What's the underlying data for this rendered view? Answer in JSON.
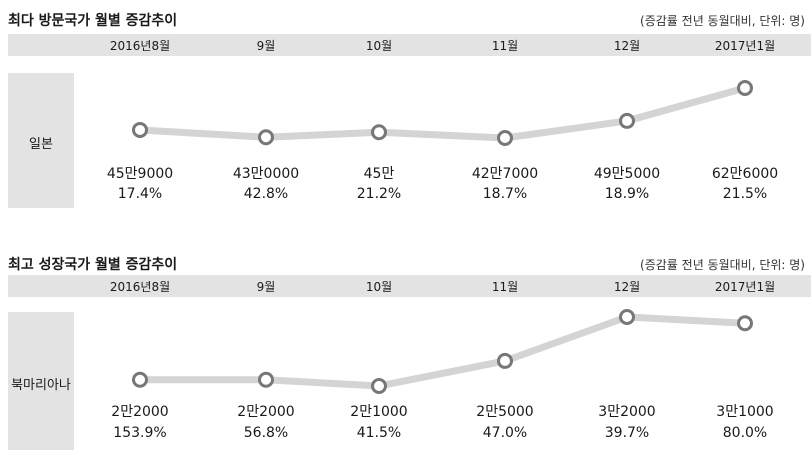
{
  "chart_data": [
    {
      "type": "line",
      "title": "최다 방문국가 월별 증감추이",
      "note": "(증감률 전년 동월대비, 단위: 명)",
      "categories": [
        "2016년8월",
        "9월",
        "10월",
        "11월",
        "12월",
        "2017년1월"
      ],
      "series": [
        {
          "name": "일본",
          "labels": [
            "45만9000",
            "43만0000",
            "45만",
            "42만7000",
            "49만5000",
            "62만6000"
          ],
          "values": [
            459000,
            430000,
            450000,
            427000,
            495000,
            626000
          ],
          "growth": [
            "17.4%",
            "42.8%",
            "21.2%",
            "18.7%",
            "18.9%",
            "21.5%"
          ]
        }
      ],
      "line_color": "#d4d4d4",
      "marker_color": "#777777"
    },
    {
      "type": "line",
      "title": "최고 성장국가 월별 증감추이",
      "note": "(증감률 전년 동월대비, 단위: 명)",
      "categories": [
        "2016년8월",
        "9월",
        "10월",
        "11월",
        "12월",
        "2017년1월"
      ],
      "series": [
        {
          "name": "북마리아나",
          "labels": [
            "2만2000",
            "2만2000",
            "2만1000",
            "2만5000",
            "3만2000",
            "3만1000"
          ],
          "values": [
            22000,
            22000,
            21000,
            25000,
            32000,
            31000
          ],
          "growth": [
            "153.9%",
            "56.8%",
            "41.5%",
            "47.0%",
            "39.7%",
            "80.0%"
          ]
        }
      ],
      "line_color": "#d4d4d4",
      "marker_color": "#777777"
    }
  ]
}
